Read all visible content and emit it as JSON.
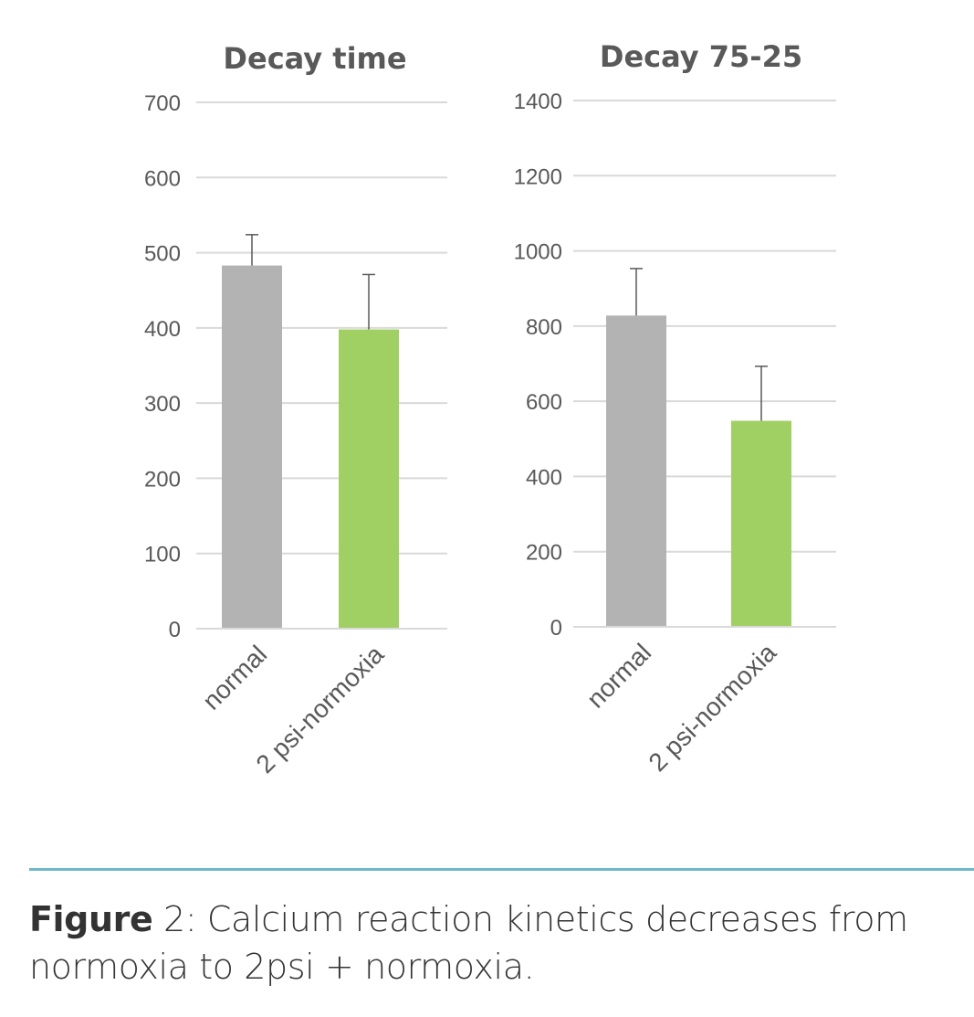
{
  "chart_data": [
    {
      "type": "bar",
      "title": "Decay time",
      "categories": [
        "normal",
        "2 psi-normoxia"
      ],
      "values": [
        483,
        398
      ],
      "error_plus": [
        41,
        73
      ],
      "colors": [
        "#b3b3b3",
        "#a0cf64"
      ],
      "ylim": [
        0,
        700
      ],
      "yticks": [
        0,
        100,
        200,
        300,
        400,
        500,
        600,
        700
      ],
      "xlabel": "",
      "ylabel": "",
      "grid": true,
      "legend": "none"
    },
    {
      "type": "bar",
      "title": "Decay 75-25",
      "categories": [
        "normal",
        "2 psi-normoxia"
      ],
      "values": [
        828,
        548
      ],
      "error_plus": [
        125,
        145
      ],
      "colors": [
        "#b3b3b3",
        "#a0cf64"
      ],
      "ylim": [
        0,
        1400
      ],
      "yticks": [
        0,
        200,
        400,
        600,
        800,
        1000,
        1200,
        1400
      ],
      "xlabel": "",
      "ylabel": "",
      "grid": true,
      "legend": "none"
    }
  ],
  "caption": {
    "prefix": "Figure",
    "text": " 2:  Calcium reaction kinetics decreases from normoxia to 2psi + normoxia."
  },
  "colors": {
    "divider": "#6fb8c9"
  }
}
